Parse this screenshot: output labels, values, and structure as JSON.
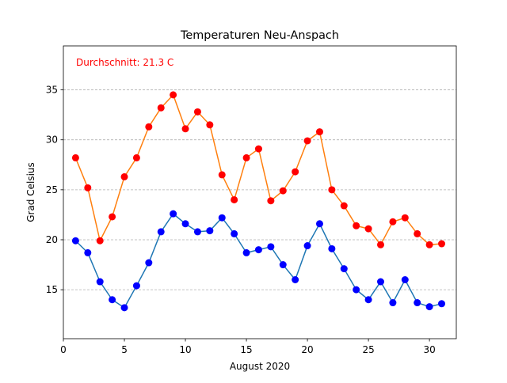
{
  "chart_data": {
    "type": "line",
    "title": "Temperaturen Neu-Anspach",
    "xlabel": "August 2020",
    "ylabel": "Grad Celsius",
    "annotation": "Durchschnitt: 21.3 C",
    "xlim": [
      0,
      32.2
    ],
    "ylim": [
      10.1,
      39.4
    ],
    "xticks": [
      0,
      5,
      10,
      15,
      20,
      25,
      30
    ],
    "yticks": [
      15,
      20,
      25,
      30,
      35
    ],
    "grid": "y-dashed",
    "x": [
      1,
      2,
      3,
      4,
      5,
      6,
      7,
      8,
      9,
      10,
      11,
      12,
      13,
      14,
      15,
      16,
      17,
      18,
      19,
      20,
      21,
      22,
      23,
      24,
      25,
      26,
      27,
      28,
      29,
      30,
      31
    ],
    "series": [
      {
        "line_color": "#ff7f0e",
        "marker_color": "#ff0000",
        "values": [
          28.2,
          25.2,
          19.9,
          22.3,
          26.3,
          28.2,
          31.3,
          33.2,
          34.5,
          31.1,
          32.8,
          31.5,
          26.5,
          24.0,
          28.2,
          29.1,
          23.9,
          24.9,
          26.8,
          29.9,
          30.8,
          25.0,
          23.4,
          21.4,
          21.1,
          19.5,
          21.8,
          22.2,
          20.6,
          19.5,
          19.6
        ]
      },
      {
        "line_color": "#1f77b4",
        "marker_color": "#0000ff",
        "values": [
          19.9,
          18.7,
          15.8,
          14.0,
          13.2,
          15.4,
          17.7,
          20.8,
          22.6,
          21.6,
          20.8,
          20.9,
          22.2,
          20.6,
          18.7,
          19.0,
          19.3,
          17.5,
          16.0,
          19.4,
          21.6,
          19.1,
          17.1,
          15.0,
          14.0,
          15.8,
          13.7,
          16.0,
          13.7,
          13.3,
          13.6
        ]
      }
    ],
    "annotation_color": "#ff0000"
  }
}
